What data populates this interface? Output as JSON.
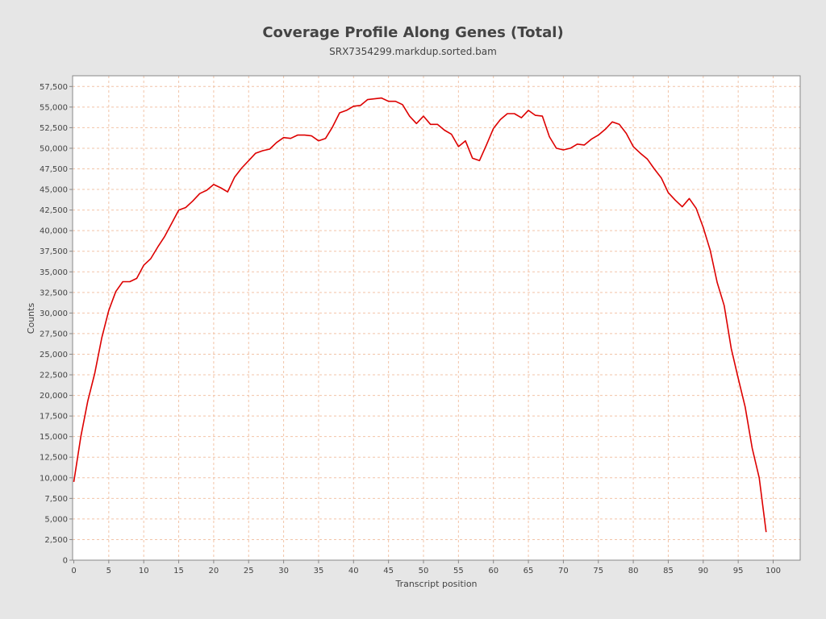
{
  "chart_data": {
    "type": "line",
    "title": "Coverage Profile Along Genes (Total)",
    "subtitle": "SRX7354299.markdup.sorted.bam",
    "xlabel": "Transcript position",
    "ylabel": "Counts",
    "xlim": [
      0,
      104
    ],
    "ylim": [
      0,
      58800
    ],
    "grid": true,
    "x_ticks": [
      0,
      5,
      10,
      15,
      20,
      25,
      30,
      35,
      40,
      45,
      50,
      55,
      60,
      65,
      70,
      75,
      80,
      85,
      90,
      95,
      100
    ],
    "x_tick_labels": [
      "0",
      "5",
      "10",
      "15",
      "20",
      "25",
      "30",
      "35",
      "40",
      "45",
      "50",
      "55",
      "60",
      "65",
      "70",
      "75",
      "80",
      "85",
      "90",
      "95",
      "100"
    ],
    "y_ticks": [
      0,
      2500,
      5000,
      7500,
      10000,
      12500,
      15000,
      17500,
      20000,
      22500,
      25000,
      27500,
      30000,
      32500,
      35000,
      37500,
      40000,
      42500,
      45000,
      47500,
      50000,
      52500,
      55000,
      57500
    ],
    "y_tick_labels": [
      "0",
      "2,500",
      "5,000",
      "7,500",
      "10,000",
      "12,500",
      "15,000",
      "17,500",
      "20,000",
      "22,500",
      "25,000",
      "27,500",
      "30,000",
      "32,500",
      "35,000",
      "37,500",
      "40,000",
      "42,500",
      "45,000",
      "47,500",
      "50,000",
      "52,500",
      "55,000",
      "57,500"
    ],
    "series": [
      {
        "color": "#dd0000",
        "x": [
          0,
          1,
          2,
          3,
          4,
          5,
          6,
          7,
          8,
          9,
          10,
          11,
          12,
          13,
          14,
          15,
          16,
          17,
          18,
          19,
          20,
          21,
          22,
          23,
          24,
          25,
          26,
          27,
          28,
          29,
          30,
          31,
          32,
          33,
          34,
          35,
          36,
          37,
          38,
          39,
          40,
          41,
          42,
          43,
          44,
          45,
          46,
          47,
          48,
          49,
          50,
          51,
          52,
          53,
          54,
          55,
          56,
          57,
          58,
          59,
          60,
          61,
          62,
          63,
          64,
          65,
          66,
          67,
          68,
          69,
          70,
          71,
          72,
          73,
          74,
          75,
          76,
          77,
          78,
          79,
          80,
          81,
          82,
          83,
          84,
          85,
          86,
          87,
          88,
          89,
          90,
          91,
          92,
          93,
          94,
          95,
          96,
          97,
          98,
          99
        ],
        "y": [
          9500,
          15000,
          19300,
          22700,
          27000,
          30300,
          32600,
          33800,
          33800,
          34200,
          35800,
          36600,
          38000,
          39300,
          40900,
          42500,
          42800,
          43600,
          44500,
          44900,
          45600,
          45200,
          44700,
          46500,
          47600,
          48500,
          49400,
          49700,
          49900,
          50700,
          51300,
          51200,
          51600,
          51600,
          51500,
          50900,
          51200,
          52600,
          54300,
          54600,
          55100,
          55200,
          55900,
          56000,
          56100,
          55700,
          55700,
          55300,
          53900,
          53000,
          53900,
          52900,
          52900,
          52200,
          51700,
          50200,
          50900,
          48800,
          48500,
          50400,
          52400,
          53500,
          54200,
          54200,
          53700,
          54600,
          54000,
          53900,
          51400,
          50000,
          49800,
          50000,
          50500,
          50400,
          51100,
          51600,
          52300,
          53200,
          52900,
          51800,
          50200,
          49400,
          48700,
          47500,
          46400,
          44600,
          43700,
          42900,
          43900,
          42700,
          40400,
          37600,
          33700,
          30900,
          25700,
          22100,
          18600,
          13600,
          10000,
          3400
        ]
      }
    ]
  }
}
